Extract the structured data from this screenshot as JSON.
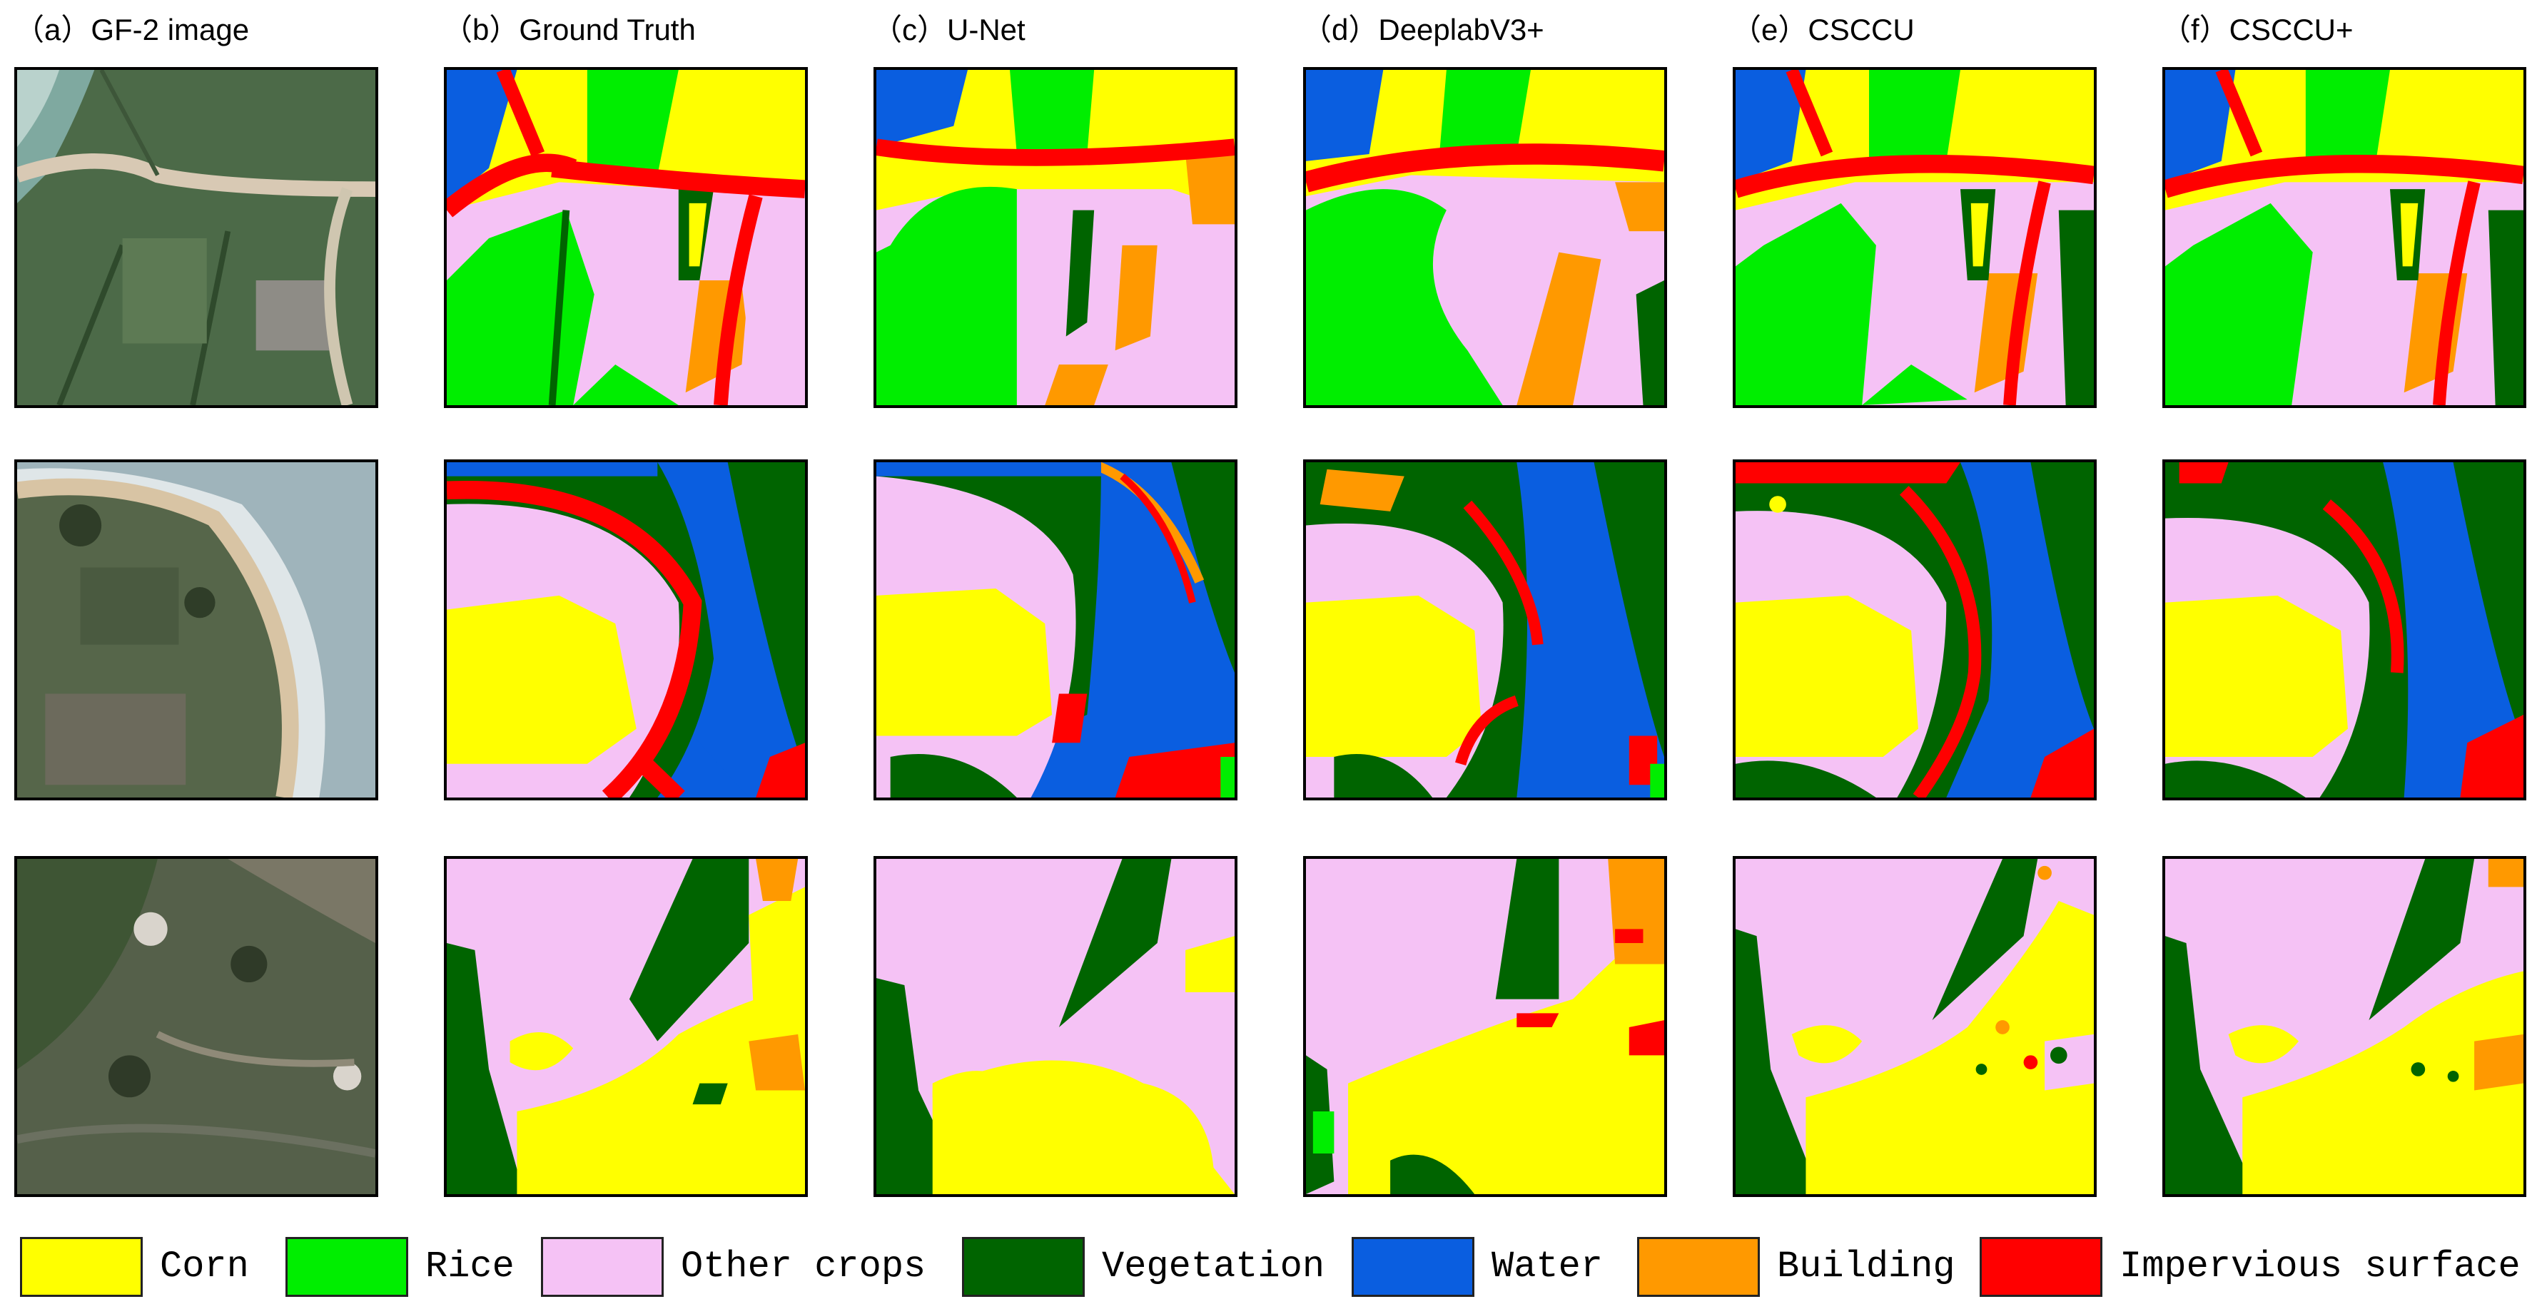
{
  "columns": [
    {
      "label": "（a）GF-2 image"
    },
    {
      "label": "（b）Ground Truth"
    },
    {
      "label": "（c）U-Net"
    },
    {
      "label": "（d）DeeplabV3+"
    },
    {
      "label": "（e）CSCCU"
    },
    {
      "label": "（f）CSCCU+"
    }
  ],
  "legend": [
    {
      "label": "Corn",
      "color": "#ffff00"
    },
    {
      "label": "Rice",
      "color": "#00ee00"
    },
    {
      "label": "Other crops",
      "color": "#f5c2f5"
    },
    {
      "label": "Vegetation",
      "color": "#006400"
    },
    {
      "label": "Water",
      "color": "#0a5ee0"
    },
    {
      "label": "Building",
      "color": "#ff9900"
    },
    {
      "label": "Impervious surface",
      "color": "#ff0000"
    }
  ]
}
